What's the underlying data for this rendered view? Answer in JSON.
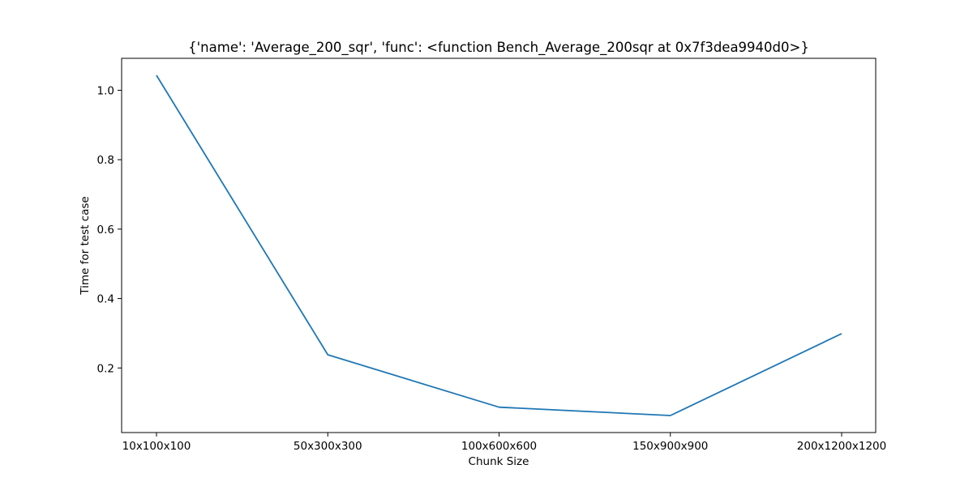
{
  "chart_data": {
    "type": "line",
    "title": "{'name': 'Average_200_sqr', 'func': <function Bench_Average_200sqr at 0x7f3dea9940d0>}",
    "xlabel": "Chunk Size",
    "ylabel": "Time for test case",
    "categories": [
      "10x100x100",
      "50x300x300",
      "100x600x600",
      "150x900x900",
      "200x1200x1200"
    ],
    "series": [
      {
        "values": [
          1.043,
          0.238,
          0.087,
          0.063,
          0.299
        ]
      }
    ],
    "ylim": [
      0.014,
      1.092
    ],
    "yticks": [
      0.2,
      0.4,
      0.6,
      0.8,
      1.0
    ],
    "ytick_labels": [
      "0.2",
      "0.4",
      "0.6",
      "0.8",
      "1.0"
    ],
    "grid": false,
    "line_color": "#1f77b4"
  }
}
